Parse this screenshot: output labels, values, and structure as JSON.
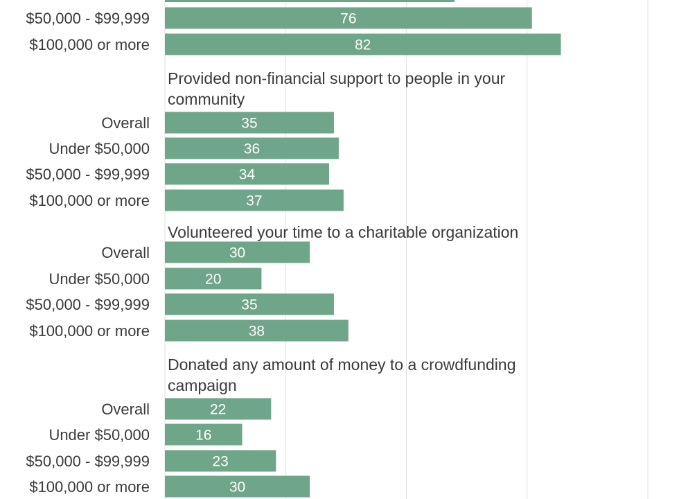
{
  "chart_data": {
    "type": "bar",
    "orientation": "horizontal",
    "bar_color": "#6fa588",
    "grid": true,
    "value_labels": "inside bars",
    "x_range": [
      0,
      100
    ],
    "groups": [
      {
        "title": "",
        "categories": [
          "$50,000 - $99,999",
          "$100,000 or more"
        ],
        "values": [
          76,
          82
        ],
        "partial_bar_above": 60
      },
      {
        "title_lines": [
          "Provided non-financial support to people in your",
          "community"
        ],
        "categories": [
          "Overall",
          "Under $50,000",
          "$50,000 - $99,999",
          "$100,000 or more"
        ],
        "values": [
          35,
          36,
          34,
          37
        ]
      },
      {
        "title_lines": [
          "Volunteered your time to a charitable organization"
        ],
        "categories": [
          "Overall",
          "Under $50,000",
          "$50,000 - $99,999",
          "$100,000 or more"
        ],
        "values": [
          30,
          20,
          35,
          38
        ]
      },
      {
        "title_lines": [
          "Donated any amount of money to a crowdfunding",
          "campaign"
        ],
        "categories": [
          "Overall",
          "Under $50,000",
          "$50,000 - $99,999",
          "$100,000 or more"
        ],
        "values": [
          22,
          16,
          23,
          30
        ]
      }
    ]
  }
}
